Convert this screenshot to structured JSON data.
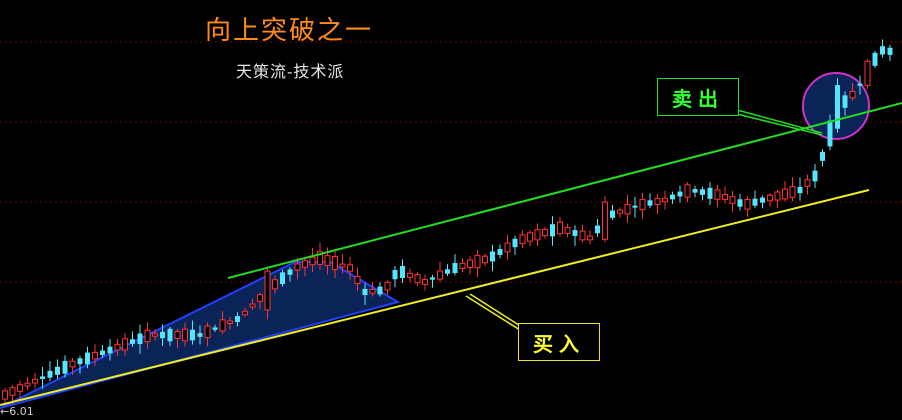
{
  "title": "向上突破之一",
  "subtitle": "天策流-技术派",
  "annotations": {
    "sell": "卖出",
    "buy": "买入"
  },
  "price_marker": "←6.01",
  "colors": {
    "background": "#000000",
    "up_candle": "#ff3333",
    "down_candle": "#55e6ff",
    "upper_trendline": "#22dd22",
    "lower_trendline": "#eeee22",
    "triangle": "#1a3aff",
    "circle": "#cc33cc",
    "grid": "#7a0000"
  },
  "chart_data": {
    "type": "candlestick",
    "grid": true,
    "trend": "ascending channel with upward breakout",
    "lines": [
      "upper resistance trendline",
      "lower support trendline"
    ],
    "highlights": [
      "ascending triangle formation",
      "breakout circle"
    ]
  }
}
